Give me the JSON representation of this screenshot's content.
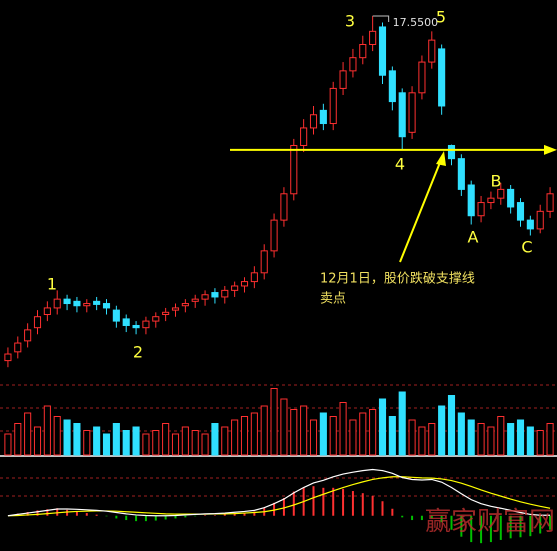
{
  "chart_data": [
    {
      "type": "candlestick",
      "open": [
        9.7,
        9.9,
        10.15,
        10.45,
        10.75,
        10.9,
        11.1,
        11.05,
        10.95,
        11.05,
        11.0,
        10.85,
        10.65,
        10.5,
        10.45,
        10.6,
        10.75,
        10.85,
        10.95,
        11.05,
        11.1,
        11.25,
        11.15,
        11.3,
        11.4,
        11.5,
        11.7,
        12.2,
        12.9,
        13.5,
        14.6,
        15.0,
        15.4,
        15.1,
        15.9,
        16.3,
        16.6,
        16.9,
        17.3,
        16.3,
        15.8,
        14.9,
        15.8,
        16.5,
        16.8,
        14.6,
        14.3,
        13.7,
        13.0,
        13.3,
        13.4,
        13.6,
        13.3,
        12.9,
        12.7,
        13.1
      ],
      "high": [
        10.0,
        10.25,
        10.55,
        10.85,
        11.05,
        11.3,
        11.2,
        11.15,
        11.1,
        11.15,
        11.1,
        10.95,
        10.75,
        10.6,
        10.7,
        10.8,
        10.9,
        11.0,
        11.1,
        11.2,
        11.3,
        11.35,
        11.4,
        11.5,
        11.6,
        11.85,
        12.35,
        13.05,
        13.65,
        14.75,
        15.2,
        15.5,
        15.55,
        16.05,
        16.5,
        16.8,
        17.1,
        17.55,
        17.4,
        16.4,
        15.9,
        15.95,
        16.65,
        17.2,
        16.9,
        14.62,
        14.4,
        13.8,
        13.45,
        13.55,
        13.75,
        13.7,
        13.4,
        13.0,
        13.25,
        13.65
      ],
      "low": [
        9.55,
        9.75,
        10.0,
        10.3,
        10.6,
        10.75,
        10.85,
        10.8,
        10.8,
        10.85,
        10.75,
        10.45,
        10.35,
        10.3,
        10.3,
        10.45,
        10.6,
        10.7,
        10.8,
        10.9,
        10.95,
        11.0,
        11.0,
        11.15,
        11.25,
        11.35,
        11.55,
        12.05,
        12.75,
        13.35,
        14.45,
        14.85,
        14.95,
        14.95,
        15.75,
        16.15,
        16.45,
        16.75,
        16.0,
        15.4,
        14.5,
        14.75,
        15.65,
        16.35,
        15.3,
        14.15,
        13.45,
        12.8,
        12.85,
        13.15,
        13.25,
        13.05,
        12.75,
        12.55,
        12.6,
        12.95
      ],
      "close": [
        9.85,
        10.1,
        10.4,
        10.7,
        10.9,
        11.1,
        11.0,
        10.95,
        11.0,
        10.98,
        10.9,
        10.6,
        10.5,
        10.45,
        10.6,
        10.7,
        10.8,
        10.9,
        11.0,
        11.1,
        11.2,
        11.15,
        11.3,
        11.4,
        11.5,
        11.7,
        12.2,
        12.9,
        13.5,
        14.6,
        15.0,
        15.3,
        15.1,
        15.9,
        16.3,
        16.6,
        16.9,
        17.2,
        16.2,
        15.6,
        14.8,
        15.8,
        16.5,
        17.0,
        15.5,
        14.3,
        13.6,
        13.0,
        13.3,
        13.4,
        13.6,
        13.2,
        12.9,
        12.7,
        13.1,
        13.5
      ],
      "ylim": [
        9.6,
        17.8
      ],
      "up_color": "#ff3030",
      "down_color": "#30e0ff",
      "support_line": 14.5,
      "support_color": "#ffff00",
      "high_marker": {
        "value": 17.55,
        "label": "17.5500"
      },
      "annotations": [
        "1",
        "2",
        "3",
        "4",
        "5",
        "A",
        "B",
        "C"
      ],
      "callout": [
        "12月1日，股价跌破支撑线",
        "卖点"
      ],
      "watermark": "赢家财富网"
    },
    {
      "type": "bar",
      "values": [
        30,
        45,
        60,
        40,
        70,
        55,
        50,
        45,
        35,
        40,
        30,
        45,
        35,
        40,
        30,
        35,
        45,
        30,
        40,
        35,
        30,
        45,
        40,
        50,
        55,
        60,
        70,
        95,
        80,
        65,
        70,
        50,
        60,
        55,
        75,
        50,
        60,
        65,
        80,
        55,
        90,
        50,
        40,
        45,
        70,
        85,
        60,
        50,
        45,
        40,
        55,
        45,
        50,
        40,
        35,
        45
      ],
      "ylim": [
        0,
        100
      ]
    },
    {
      "type": "macd",
      "dif": [
        0,
        0.05,
        0.1,
        0.15,
        0.2,
        0.25,
        0.25,
        0.24,
        0.22,
        0.2,
        0.17,
        0.12,
        0.07,
        0.03,
        0.01,
        0,
        0,
        0.01,
        0.03,
        0.05,
        0.07,
        0.08,
        0.1,
        0.13,
        0.16,
        0.2,
        0.3,
        0.45,
        0.62,
        0.85,
        1.05,
        1.22,
        1.32,
        1.45,
        1.55,
        1.62,
        1.68,
        1.72,
        1.68,
        1.58,
        1.42,
        1.35,
        1.33,
        1.35,
        1.25,
        1.05,
        0.82,
        0.6,
        0.45,
        0.35,
        0.28,
        0.2,
        0.12,
        0.05,
        0.02,
        0.02
      ],
      "dea": [
        0,
        0.01,
        0.03,
        0.05,
        0.08,
        0.11,
        0.14,
        0.16,
        0.17,
        0.18,
        0.18,
        0.17,
        0.15,
        0.13,
        0.11,
        0.09,
        0.07,
        0.06,
        0.06,
        0.06,
        0.06,
        0.07,
        0.07,
        0.08,
        0.1,
        0.12,
        0.15,
        0.21,
        0.29,
        0.4,
        0.53,
        0.67,
        0.8,
        0.93,
        1.05,
        1.16,
        1.26,
        1.35,
        1.41,
        1.45,
        1.45,
        1.43,
        1.41,
        1.4,
        1.37,
        1.31,
        1.21,
        1.09,
        0.96,
        0.84,
        0.73,
        0.62,
        0.52,
        0.43,
        0.35,
        0.28
      ],
      "hist": [
        0,
        0.08,
        0.14,
        0.2,
        0.24,
        0.28,
        0.22,
        0.16,
        0.1,
        0.04,
        -0.02,
        -0.1,
        -0.16,
        -0.2,
        -0.2,
        -0.18,
        -0.14,
        -0.1,
        -0.06,
        -0.02,
        0.02,
        0.02,
        0.06,
        0.1,
        0.12,
        0.16,
        0.3,
        0.48,
        0.66,
        0.9,
        1.04,
        1.1,
        1.04,
        1.04,
        1.0,
        0.92,
        0.84,
        0.74,
        0.54,
        0.26,
        -0.06,
        -0.16,
        -0.16,
        -0.1,
        -0.24,
        -0.52,
        -0.78,
        -0.98,
        -1.02,
        -0.98,
        -0.9,
        -0.84,
        -0.8,
        -0.76,
        -0.66,
        -0.52
      ],
      "ylim": [
        -1.2,
        2.0
      ],
      "dif_color": "#ffffff",
      "dea_color": "#ffff00",
      "pos_color": "#ff3030",
      "neg_color": "#00c000"
    }
  ]
}
